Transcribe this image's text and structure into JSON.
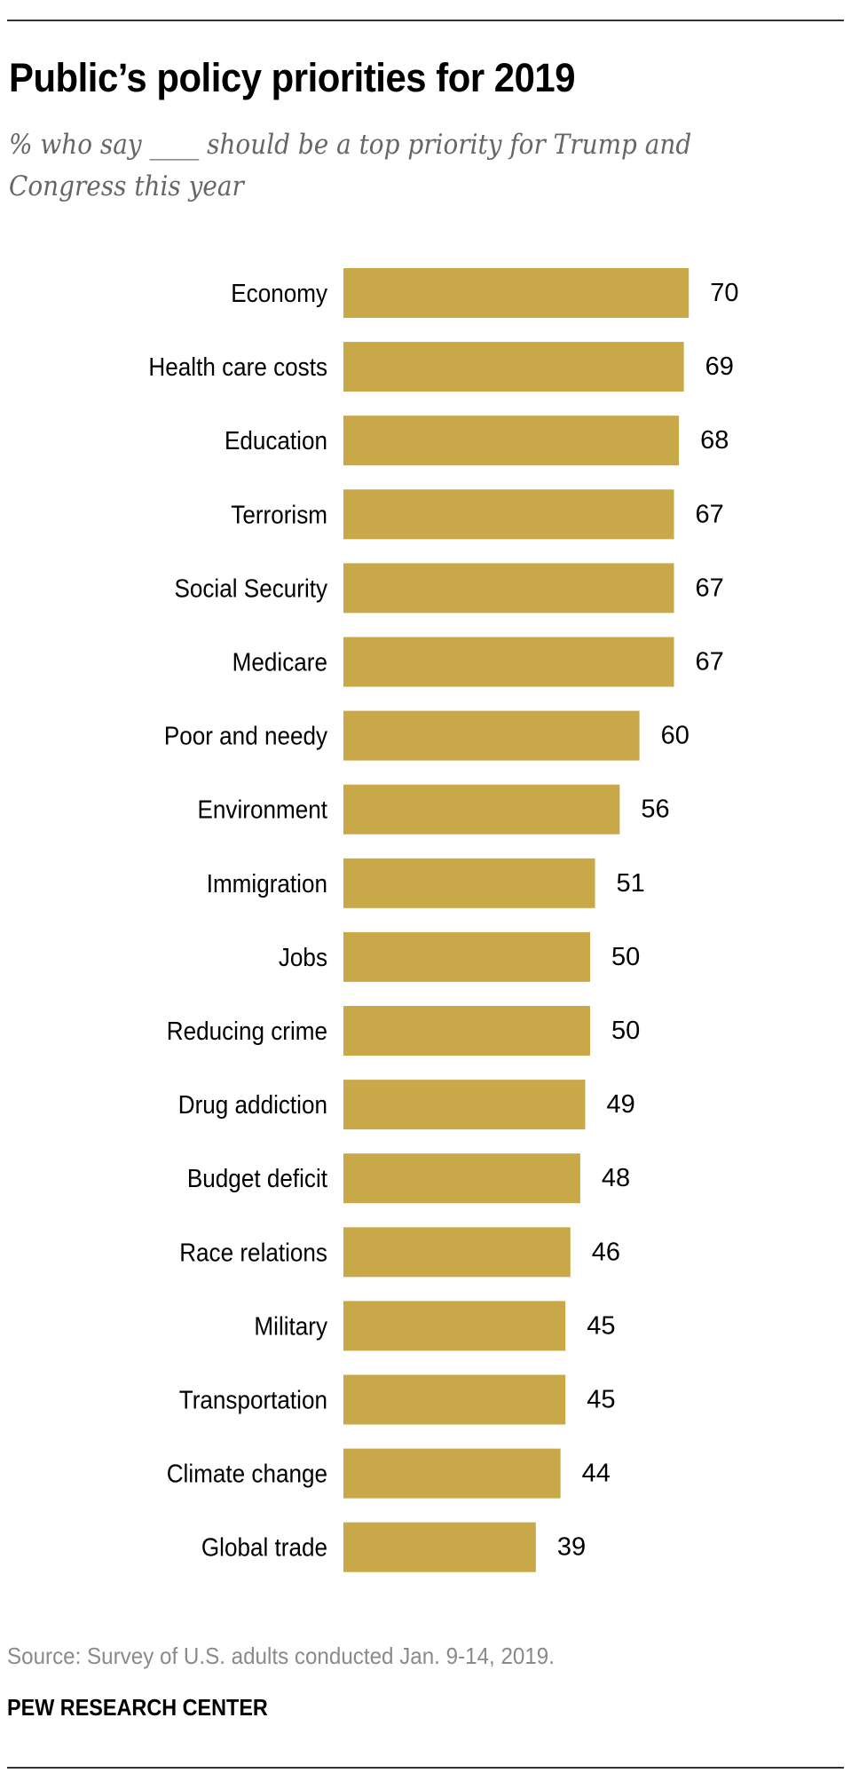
{
  "chart_data": {
    "type": "bar",
    "orientation": "horizontal",
    "title": "Public’s policy priorities for 2019",
    "subtitle": "% who say ____ should be a top priority for Trump and Congress this year",
    "xlabel": "",
    "ylabel": "",
    "xlim": [
      0,
      100
    ],
    "grid": false,
    "legend": null,
    "bar_color": "#C9A84A",
    "categories": [
      "Economy",
      "Health care costs",
      "Education",
      "Terrorism",
      "Social Security",
      "Medicare",
      "Poor and needy",
      "Environment",
      "Immigration",
      "Jobs",
      "Reducing crime",
      "Drug addiction",
      "Budget deficit",
      "Race relations",
      "Military",
      "Transportation",
      "Climate change",
      "Global trade"
    ],
    "values": [
      70,
      69,
      68,
      67,
      67,
      67,
      60,
      56,
      51,
      50,
      50,
      49,
      48,
      46,
      45,
      45,
      44,
      39
    ]
  },
  "header": {
    "title": "Public’s policy priorities for 2019",
    "subtitle": "% who say ____ should be a top priority for Trump and Congress this year"
  },
  "footer": {
    "source": "Source: Survey of U.S. adults conducted Jan. 9-14, 2019.",
    "brand": "PEW RESEARCH CENTER"
  }
}
